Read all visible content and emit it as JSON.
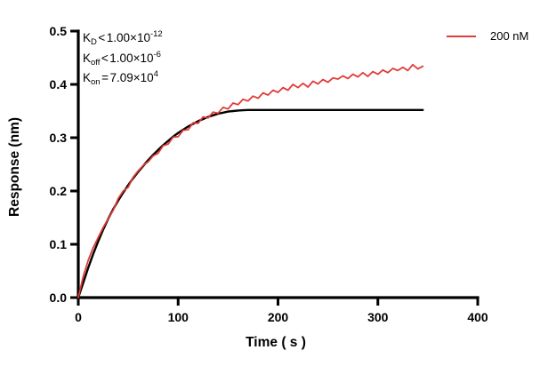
{
  "figure": {
    "background": "#ffffff",
    "axis_color": "#000000"
  },
  "axes": {
    "x": {
      "label": "Time ( s )",
      "ticks": [
        "0",
        "100",
        "200",
        "300",
        "400"
      ],
      "range": [
        0,
        400
      ]
    },
    "y": {
      "label": "Response (nm)",
      "ticks": [
        "0.0",
        "0.1",
        "0.2",
        "0.3",
        "0.4",
        "0.5"
      ],
      "range": [
        0,
        0.5
      ]
    }
  },
  "legend": {
    "items": [
      {
        "label": "200 nM",
        "color": "#e03c38"
      }
    ]
  },
  "annotations": [
    {
      "base": "K",
      "sub": "D",
      "rel": "<",
      "mant": "1.00×10",
      "sup": "-12"
    },
    {
      "base": "K",
      "sub": "off",
      "rel": "<",
      "mant": "1.00×10",
      "sup": "-6"
    },
    {
      "base": "K",
      "sub": "on",
      "rel": "=",
      "mant": "7.09×10",
      "sup": "4"
    }
  ],
  "chart_data": {
    "type": "line",
    "title": "",
    "xlabel": "Time ( s )",
    "ylabel": "Response (nm)",
    "xlim": [
      0,
      400
    ],
    "ylim": [
      0,
      0.5
    ],
    "x_ticks": [
      0,
      100,
      200,
      300,
      400
    ],
    "y_ticks": [
      0.0,
      0.1,
      0.2,
      0.3,
      0.4,
      0.5
    ],
    "grid": false,
    "legend_position": "top-right",
    "kinetic_constants": {
      "KD": "< 1.00×10⁻¹²",
      "Koff": "< 1.00×10⁻⁶",
      "Kon": "= 7.09×10⁴"
    },
    "series": [
      {
        "name": "200 nM",
        "role": "data",
        "color": "#e03c38",
        "width": 1.8,
        "points": [
          [
            0,
            0.0
          ],
          [
            5,
            0.04
          ],
          [
            10,
            0.07
          ],
          [
            15,
            0.094
          ],
          [
            20,
            0.113
          ],
          [
            25,
            0.132
          ],
          [
            30,
            0.148
          ],
          [
            35,
            0.164
          ],
          [
            40,
            0.186
          ],
          [
            45,
            0.2
          ],
          [
            50,
            0.207
          ],
          [
            55,
            0.226
          ],
          [
            60,
            0.238
          ],
          [
            65,
            0.248
          ],
          [
            70,
            0.255
          ],
          [
            75,
            0.266
          ],
          [
            80,
            0.271
          ],
          [
            85,
            0.285
          ],
          [
            90,
            0.288
          ],
          [
            95,
            0.301
          ],
          [
            100,
            0.302
          ],
          [
            105,
            0.314
          ],
          [
            110,
            0.315
          ],
          [
            115,
            0.328
          ],
          [
            120,
            0.327
          ],
          [
            125,
            0.339
          ],
          [
            130,
            0.337
          ],
          [
            135,
            0.348
          ],
          [
            140,
            0.346
          ],
          [
            145,
            0.357
          ],
          [
            150,
            0.354
          ],
          [
            155,
            0.365
          ],
          [
            160,
            0.362
          ],
          [
            165,
            0.372
          ],
          [
            170,
            0.369
          ],
          [
            175,
            0.378
          ],
          [
            180,
            0.374
          ],
          [
            185,
            0.384
          ],
          [
            190,
            0.38
          ],
          [
            195,
            0.389
          ],
          [
            200,
            0.385
          ],
          [
            205,
            0.394
          ],
          [
            210,
            0.389
          ],
          [
            215,
            0.4
          ],
          [
            220,
            0.394
          ],
          [
            225,
            0.402
          ],
          [
            230,
            0.395
          ],
          [
            235,
            0.406
          ],
          [
            240,
            0.401
          ],
          [
            245,
            0.409
          ],
          [
            250,
            0.404
          ],
          [
            255,
            0.412
          ],
          [
            260,
            0.41
          ],
          [
            265,
            0.416
          ],
          [
            270,
            0.411
          ],
          [
            275,
            0.419
          ],
          [
            280,
            0.414
          ],
          [
            285,
            0.422
          ],
          [
            290,
            0.415
          ],
          [
            295,
            0.424
          ],
          [
            300,
            0.419
          ],
          [
            305,
            0.427
          ],
          [
            310,
            0.422
          ],
          [
            315,
            0.43
          ],
          [
            320,
            0.426
          ],
          [
            325,
            0.432
          ],
          [
            330,
            0.426
          ],
          [
            335,
            0.437
          ],
          [
            340,
            0.429
          ],
          [
            345,
            0.434
          ]
        ]
      },
      {
        "name": "fit",
        "role": "fit",
        "color": "#000000",
        "width": 2.4,
        "points": [
          [
            0,
            0.0
          ],
          [
            5,
            0.028
          ],
          [
            10,
            0.056
          ],
          [
            15,
            0.082
          ],
          [
            20,
            0.106
          ],
          [
            25,
            0.128
          ],
          [
            30,
            0.148
          ],
          [
            35,
            0.166
          ],
          [
            40,
            0.182
          ],
          [
            45,
            0.197
          ],
          [
            50,
            0.211
          ],
          [
            55,
            0.224
          ],
          [
            60,
            0.236
          ],
          [
            65,
            0.247
          ],
          [
            70,
            0.258
          ],
          [
            75,
            0.268
          ],
          [
            80,
            0.277
          ],
          [
            85,
            0.286
          ],
          [
            90,
            0.294
          ],
          [
            95,
            0.302
          ],
          [
            100,
            0.309
          ],
          [
            105,
            0.315
          ],
          [
            110,
            0.321
          ],
          [
            115,
            0.326
          ],
          [
            120,
            0.331
          ],
          [
            125,
            0.335
          ],
          [
            130,
            0.339
          ],
          [
            135,
            0.342
          ],
          [
            140,
            0.345
          ],
          [
            145,
            0.347
          ],
          [
            150,
            0.349
          ],
          [
            155,
            0.35
          ],
          [
            160,
            0.351
          ],
          [
            165,
            0.3515
          ],
          [
            170,
            0.352
          ],
          [
            180,
            0.352
          ],
          [
            200,
            0.352
          ],
          [
            250,
            0.352
          ],
          [
            300,
            0.352
          ],
          [
            345,
            0.352
          ]
        ]
      }
    ]
  }
}
